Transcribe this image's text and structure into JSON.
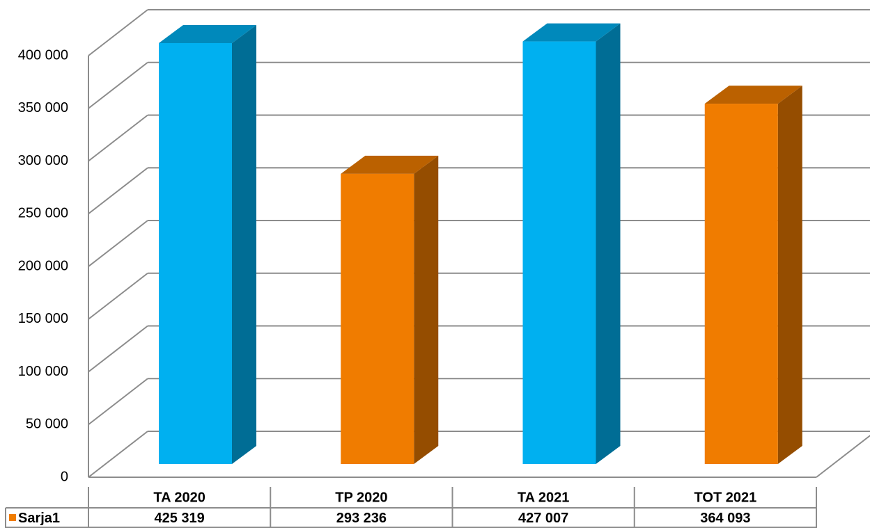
{
  "chart_data": {
    "type": "bar3d",
    "categories": [
      "TA 2020",
      "TP 2020",
      "TA 2021",
      "TOT 2021"
    ],
    "series": [
      {
        "name": "Sarja1",
        "color": "#f07c00",
        "colors": [
          "#00b0f0",
          "#f07c00",
          "#00b0f0",
          "#f07c00"
        ],
        "values": [
          425319,
          293236,
          427007,
          364093
        ],
        "value_labels": [
          "425 319",
          "293 236",
          "427 007",
          "364 093"
        ]
      }
    ],
    "ylim": [
      0,
      400000
    ],
    "yticks": [
      {
        "value": 0,
        "label": "0"
      },
      {
        "value": 50000,
        "label": "50 000"
      },
      {
        "value": 100000,
        "label": "100 000"
      },
      {
        "value": 150000,
        "label": "150 000"
      },
      {
        "value": 200000,
        "label": "200 000"
      },
      {
        "value": 250000,
        "label": "250 000"
      },
      {
        "value": 300000,
        "label": "300 000"
      },
      {
        "value": 350000,
        "label": "350 000"
      },
      {
        "value": 400000,
        "label": "400 000"
      }
    ],
    "grid": true,
    "data_table": true
  }
}
